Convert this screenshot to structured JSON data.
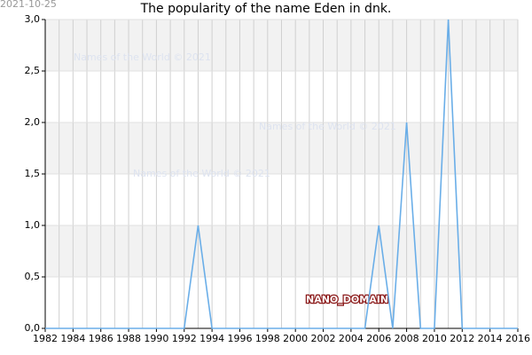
{
  "chart_data": {
    "type": "line",
    "title": "The popularity of the name Eden in dnk.",
    "stamp": "2021-10-25",
    "watermarks": [
      "Names of the World © 2021",
      "Names of the World © 2021",
      "Names of the World © 2021"
    ],
    "domain_label": "NANO_DOMAIN",
    "x": [
      1982,
      1983,
      1984,
      1985,
      1986,
      1987,
      1988,
      1989,
      1990,
      1991,
      1992,
      1993,
      1994,
      1995,
      1996,
      1997,
      1998,
      1999,
      2000,
      2001,
      2002,
      2003,
      2004,
      2005,
      2006,
      2007,
      2008,
      2009,
      2010,
      2011,
      2012,
      2013,
      2014,
      2015,
      2016
    ],
    "series": [
      {
        "name": "Eden",
        "color": "#6aaee8",
        "values": [
          0,
          0,
          0,
          0,
          0,
          0,
          0,
          0,
          0,
          0,
          0,
          1,
          0,
          0,
          0,
          0,
          0,
          0,
          0,
          0,
          0,
          0,
          0,
          0,
          1,
          0,
          2,
          0,
          0,
          3,
          0,
          0,
          0,
          0,
          0
        ]
      }
    ],
    "xlim": [
      1982,
      2016
    ],
    "xticks": [
      1982,
      1984,
      1986,
      1988,
      1990,
      1992,
      1994,
      1996,
      1998,
      2000,
      2002,
      2004,
      2006,
      2008,
      2010,
      2012,
      2014,
      2016
    ],
    "ylim": [
      0,
      3
    ],
    "yticks": [
      {
        "value": 0,
        "label": "0,0"
      },
      {
        "value": 0.5,
        "label": "0,5"
      },
      {
        "value": 1,
        "label": "1,0"
      },
      {
        "value": 1.5,
        "label": "1,5"
      },
      {
        "value": 2,
        "label": "2,0"
      },
      {
        "value": 2.5,
        "label": "2,5"
      },
      {
        "value": 3,
        "label": "3,0"
      }
    ],
    "grid": true
  }
}
